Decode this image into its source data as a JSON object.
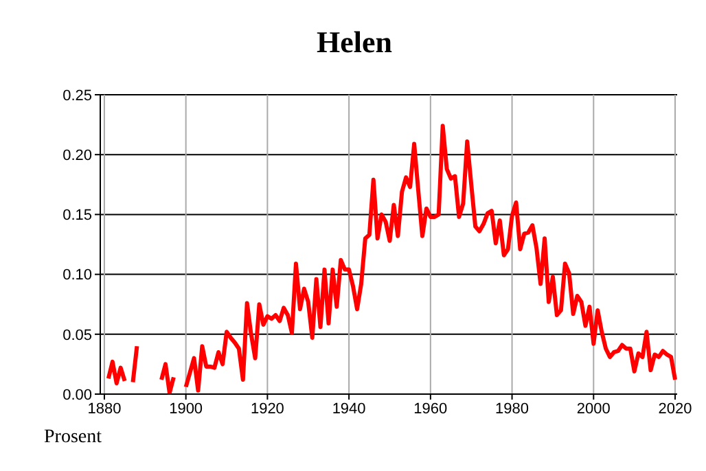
{
  "chart_data": {
    "type": "line",
    "title": "Helen",
    "ylabel": "Prosent",
    "x": [
      1881,
      1882,
      1883,
      1884,
      1885,
      1886,
      1887,
      1888,
      1889,
      1890,
      1891,
      1892,
      1893,
      1894,
      1895,
      1896,
      1897,
      1898,
      1899,
      1900,
      1901,
      1902,
      1903,
      1904,
      1905,
      1906,
      1907,
      1908,
      1909,
      1910,
      1911,
      1912,
      1913,
      1914,
      1915,
      1916,
      1917,
      1918,
      1919,
      1920,
      1921,
      1922,
      1923,
      1924,
      1925,
      1926,
      1927,
      1928,
      1929,
      1930,
      1931,
      1932,
      1933,
      1934,
      1935,
      1936,
      1937,
      1938,
      1939,
      1940,
      1941,
      1942,
      1943,
      1944,
      1945,
      1946,
      1947,
      1948,
      1949,
      1950,
      1951,
      1952,
      1953,
      1954,
      1955,
      1956,
      1957,
      1958,
      1959,
      1960,
      1961,
      1962,
      1963,
      1964,
      1965,
      1966,
      1967,
      1968,
      1969,
      1970,
      1971,
      1972,
      1973,
      1974,
      1975,
      1976,
      1977,
      1978,
      1979,
      1980,
      1981,
      1982,
      1983,
      1984,
      1985,
      1986,
      1987,
      1988,
      1989,
      1990,
      1991,
      1992,
      1993,
      1994,
      1995,
      1996,
      1997,
      1998,
      1999,
      2000,
      2001,
      2002,
      2003,
      2004,
      2005,
      2006,
      2007,
      2008,
      2009,
      2010,
      2011,
      2012,
      2013,
      2014,
      2015,
      2016,
      2017,
      2018,
      2019,
      2020
    ],
    "series": [
      {
        "color": "#ff0000",
        "values": [
          0.013,
          0.027,
          0.009,
          0.022,
          0.011,
          null,
          0.01,
          0.04,
          null,
          null,
          null,
          null,
          null,
          0.012,
          0.025,
          0.001,
          0.014,
          null,
          null,
          0.006,
          0.018,
          0.03,
          0.003,
          0.04,
          0.023,
          0.023,
          0.022,
          0.035,
          0.025,
          0.052,
          0.047,
          0.043,
          0.038,
          0.012,
          0.076,
          0.05,
          0.03,
          0.075,
          0.058,
          0.065,
          0.063,
          0.066,
          0.061,
          0.072,
          0.066,
          0.051,
          0.109,
          0.071,
          0.088,
          0.077,
          0.047,
          0.096,
          0.056,
          0.104,
          0.059,
          0.104,
          0.073,
          0.112,
          0.104,
          0.104,
          0.09,
          0.071,
          0.092,
          0.13,
          0.133,
          0.179,
          0.13,
          0.15,
          0.144,
          0.128,
          0.158,
          0.132,
          0.169,
          0.181,
          0.173,
          0.209,
          0.17,
          0.132,
          0.155,
          0.148,
          0.148,
          0.15,
          0.224,
          0.188,
          0.18,
          0.182,
          0.148,
          0.159,
          0.211,
          0.175,
          0.14,
          0.136,
          0.142,
          0.151,
          0.153,
          0.126,
          0.145,
          0.116,
          0.121,
          0.149,
          0.16,
          0.121,
          0.134,
          0.135,
          0.141,
          0.122,
          0.092,
          0.13,
          0.077,
          0.098,
          0.066,
          0.07,
          0.109,
          0.101,
          0.067,
          0.082,
          0.077,
          0.057,
          0.073,
          0.042,
          0.07,
          0.052,
          0.038,
          0.031,
          0.035,
          0.036,
          0.041,
          0.038,
          0.038,
          0.019,
          0.034,
          0.031,
          0.052,
          0.02,
          0.033,
          0.031,
          0.036,
          0.033,
          0.031,
          0.012
        ]
      }
    ],
    "xlim": [
      1879,
      2020.5
    ],
    "xticks": [
      1880,
      1900,
      1920,
      1940,
      1960,
      1980,
      2000,
      2020
    ],
    "ylim": [
      0,
      0.25
    ],
    "yticks": [
      {
        "value": 0,
        "label": "0.00"
      },
      {
        "value": 0.05,
        "label": "0.05"
      },
      {
        "value": 0.1,
        "label": "0.10"
      },
      {
        "value": 0.15,
        "label": "0.15"
      },
      {
        "value": 0.2,
        "label": "0.20"
      },
      {
        "value": 0.25,
        "label": "0.25"
      }
    ],
    "grid": true,
    "legend": false,
    "marker": "none",
    "line_style": "solid"
  }
}
